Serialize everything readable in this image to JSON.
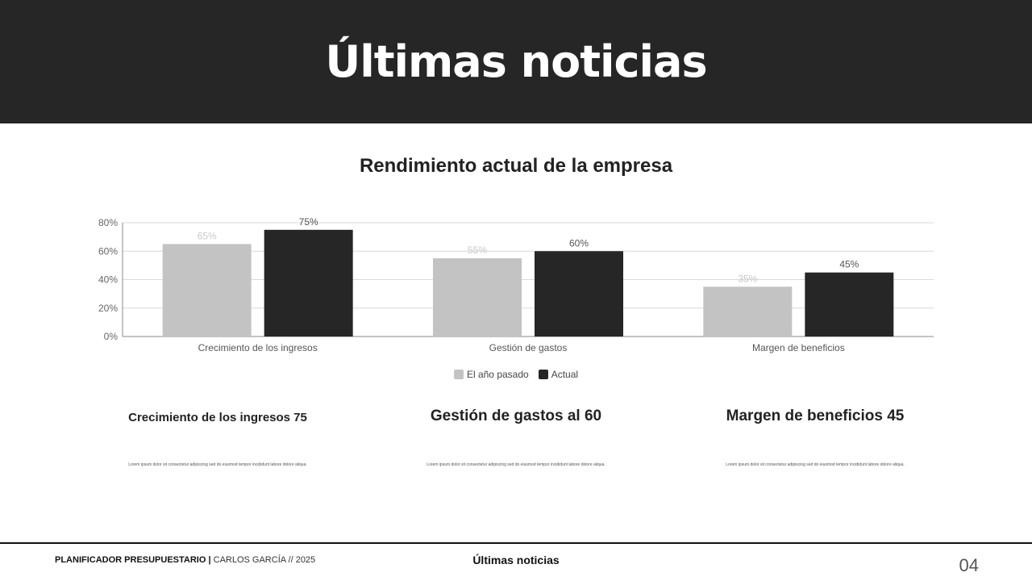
{
  "header": {
    "title": "Últimas noticias"
  },
  "chart_data": {
    "type": "bar",
    "title": "Rendimiento actual de la empresa",
    "categories": [
      "Crecimiento de los ingresos",
      "Gestión de gastos",
      "Margen de beneficios"
    ],
    "series": [
      {
        "name": "El año pasado",
        "values": [
          65,
          55,
          35
        ],
        "color": "#c3c3c3",
        "labels": [
          "65%",
          "55%",
          "35%"
        ]
      },
      {
        "name": "Actual",
        "values": [
          75,
          60,
          45
        ],
        "color": "#262626",
        "labels": [
          "75%",
          "60%",
          "45%"
        ]
      }
    ],
    "ylim": [
      0,
      80
    ],
    "yticks": [
      "0%",
      "20%",
      "40%",
      "60%",
      "80%"
    ],
    "ytick_values": [
      0,
      20,
      40,
      60,
      80
    ],
    "grid": true,
    "legend": "bottom"
  },
  "cards": [
    {
      "title": "Crecimiento de los ingresos 75",
      "text": "Lorem ipsum dolor sit consectetur adipiscing sed do eiusmod tempor incididunt labore dolore aliqua."
    },
    {
      "title": "Gestión de gastos al 60",
      "text": "Lorem ipsum dolor sit consectetur adipiscing sed do eiusmod tempor incididunt labore dolore aliqua."
    },
    {
      "title": "Margen de beneficios 45",
      "text": "Lorem ipsum dolor sit consectetur adipiscing sed do eiusmod tempor incididunt labore dolore aliqua."
    }
  ],
  "footer": {
    "planner": "PLANIFICADOR PRESUPUESTARIO |",
    "author": " CARLOS GARCÍA // 2025",
    "section": "Últimas noticias",
    "page": "04"
  }
}
